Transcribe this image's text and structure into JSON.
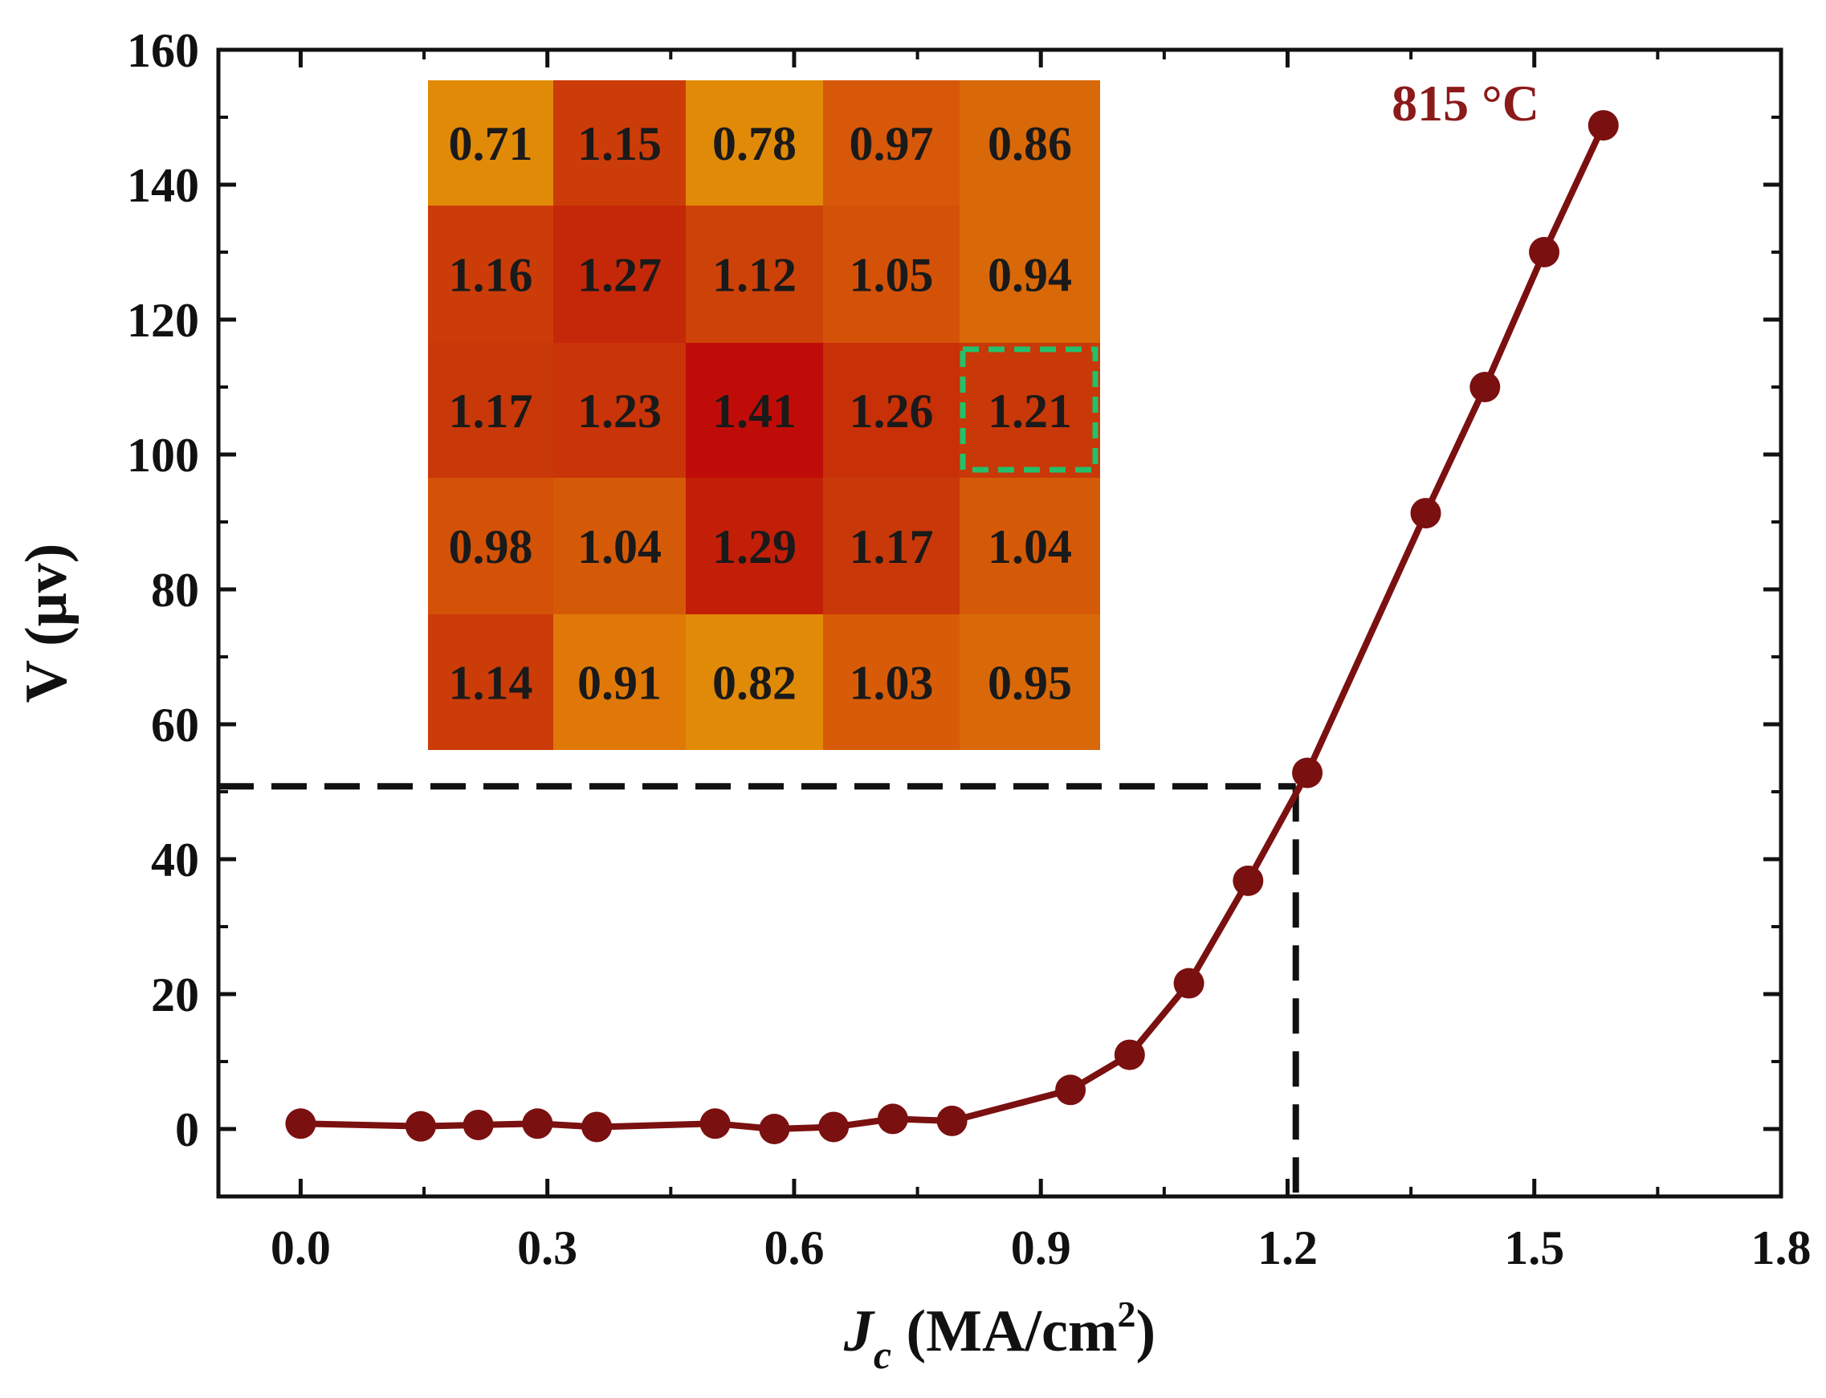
{
  "chart_data": {
    "type": "line",
    "title": "",
    "annotation": "815 °C",
    "xlabel": {
      "main": "J",
      "sub": "c",
      "units": " (MA/cm",
      "sup": "2",
      "close": ")"
    },
    "ylabel": "V (μv)",
    "xlim": [
      -0.1,
      1.8
    ],
    "ylim": [
      -10,
      160
    ],
    "xticks": [
      0.0,
      0.3,
      0.6,
      0.9,
      1.2,
      1.5,
      1.8
    ],
    "xtick_labels": [
      "0.0",
      "0.3",
      "0.6",
      "0.9",
      "1.2",
      "1.5",
      "1.8"
    ],
    "yticks": [
      0,
      20,
      40,
      60,
      80,
      100,
      120,
      140,
      160
    ],
    "ytick_labels": [
      "0",
      "20",
      "40",
      "60",
      "80",
      "100",
      "120",
      "140",
      "160"
    ],
    "grid": false,
    "series": [
      {
        "name": "815 °C",
        "color": "#7b1010",
        "x": [
          0.0,
          0.146,
          0.216,
          0.288,
          0.36,
          0.504,
          0.576,
          0.648,
          0.72,
          0.792,
          0.936,
          1.008,
          1.08,
          1.152,
          1.224,
          1.368,
          1.44,
          1.512,
          1.584
        ],
        "y": [
          0.8,
          0.4,
          0.6,
          0.8,
          0.3,
          0.8,
          0.0,
          0.3,
          1.5,
          1.2,
          5.8,
          11.0,
          21.6,
          36.8,
          52.8,
          91.3,
          110.0,
          130.0,
          148.8
        ]
      }
    ],
    "reference_lines": {
      "x": 1.21,
      "y": 50.8,
      "color": "#111111"
    },
    "inset_heatmap": {
      "rows": [
        [
          "0.71",
          "1.15",
          "0.78",
          "0.97",
          "0.86"
        ],
        [
          "1.16",
          "1.27",
          "1.12",
          "1.05",
          "0.94"
        ],
        [
          "1.17",
          "1.23",
          "1.41",
          "1.26",
          "1.21"
        ],
        [
          "0.98",
          "1.04",
          "1.29",
          "1.17",
          "1.04"
        ],
        [
          "1.14",
          "0.91",
          "0.82",
          "1.03",
          "0.95"
        ]
      ],
      "colors": [
        [
          "#e08a08",
          "#cc3c08",
          "#e08a08",
          "#d65808",
          "#d86808"
        ],
        [
          "#cc3c08",
          "#c52808",
          "#cd4208",
          "#d45208",
          "#d86808"
        ],
        [
          "#c93808",
          "#c93408",
          "#c00c08",
          "#c83008",
          "#c93808"
        ],
        [
          "#d45208",
          "#d55a08",
          "#c21e08",
          "#c93808",
          "#d55a08"
        ],
        [
          "#cc3c08",
          "#e07808",
          "#e08a08",
          "#d85c08",
          "#d86808"
        ]
      ],
      "highlight": {
        "row": 2,
        "col": 4,
        "color": "#22c16a"
      }
    }
  }
}
